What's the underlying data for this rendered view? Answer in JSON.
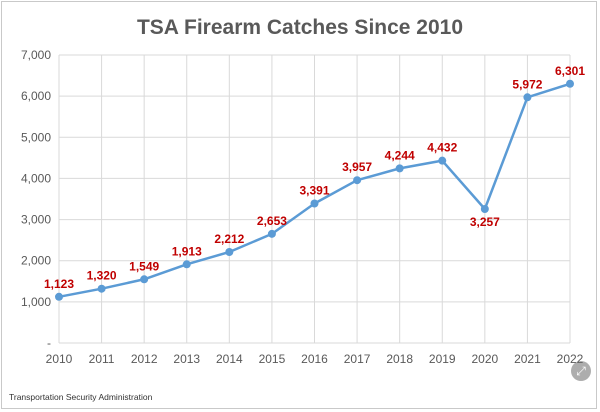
{
  "chart_data": {
    "type": "line",
    "title": "TSA Firearm Catches Since 2010",
    "x": [
      "2010",
      "2011",
      "2012",
      "2013",
      "2014",
      "2015",
      "2016",
      "2017",
      "2018",
      "2019",
      "2020",
      "2021",
      "2022"
    ],
    "values": [
      1123,
      1320,
      1549,
      1913,
      2212,
      2653,
      3391,
      3957,
      4244,
      4432,
      3257,
      5972,
      6301
    ],
    "data_labels": [
      "1,123",
      "1,320",
      "1,549",
      "1,913",
      "2,212",
      "2,653",
      "3,391",
      "3,957",
      "4,244",
      "4,432",
      "3,257",
      "5,972",
      "6,301"
    ],
    "y_ticks": [
      {
        "value": 0,
        "label": "-"
      },
      {
        "value": 1000,
        "label": "1,000"
      },
      {
        "value": 2000,
        "label": "2,000"
      },
      {
        "value": 3000,
        "label": "3,000"
      },
      {
        "value": 4000,
        "label": "4,000"
      },
      {
        "value": 5000,
        "label": "5,000"
      },
      {
        "value": 6000,
        "label": "6,000"
      },
      {
        "value": 7000,
        "label": "7,000"
      }
    ],
    "ylim": [
      0,
      7000
    ],
    "grid": true,
    "line_color": "#5b9bd5",
    "label_color": "#c00000"
  },
  "source": "Transportation Security Administration",
  "controls": {
    "expand_icon": "expand-arrows-icon",
    "expand_glyph": "⤢"
  }
}
